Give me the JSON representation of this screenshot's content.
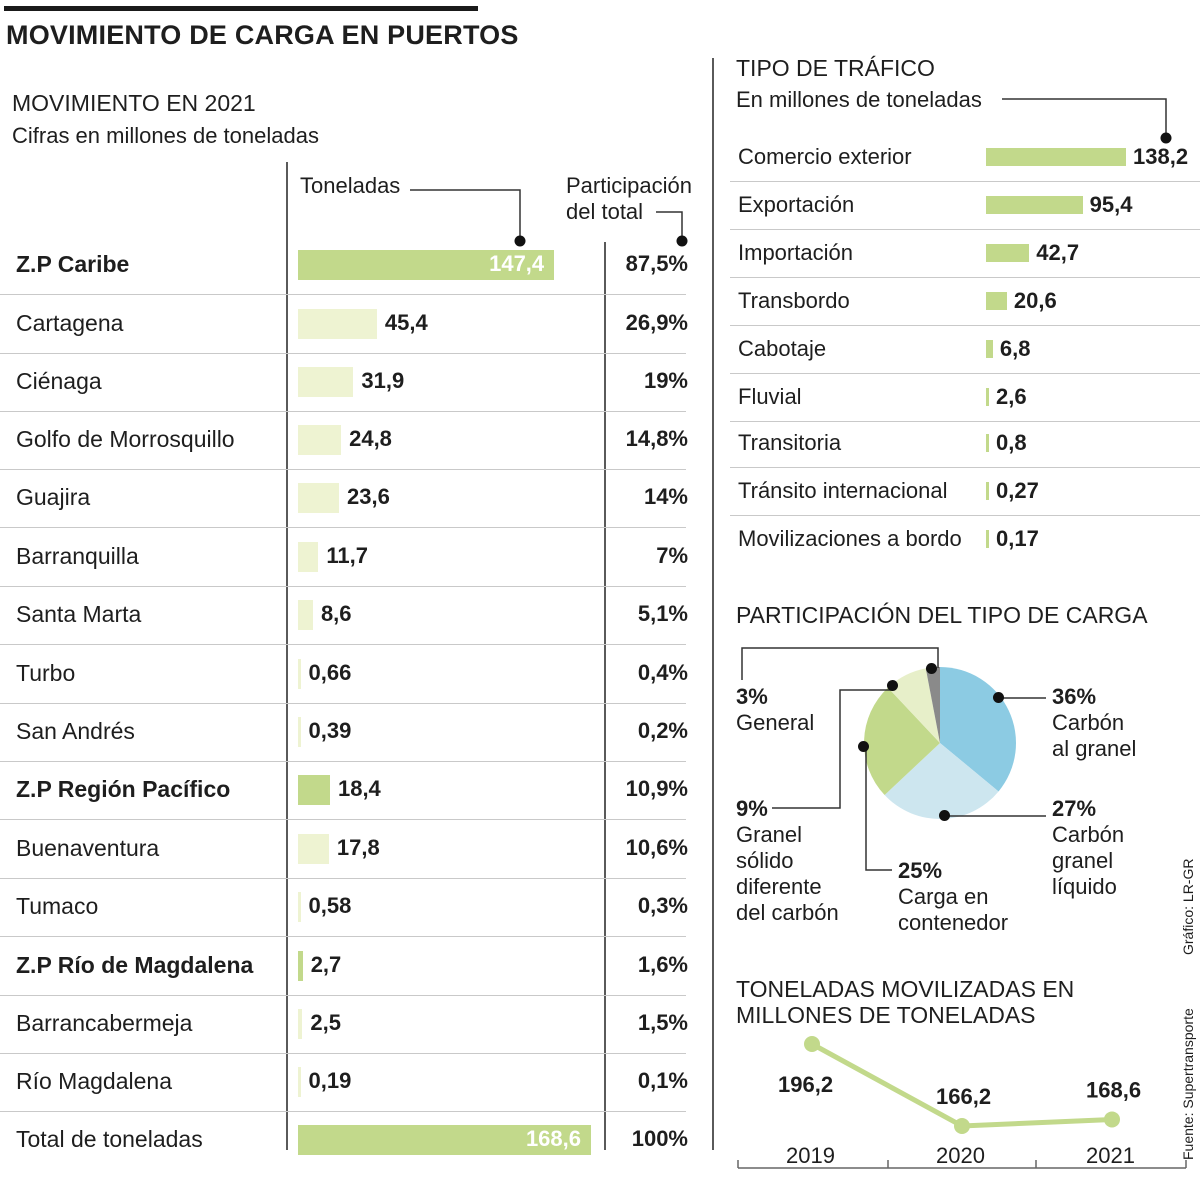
{
  "title": "MOVIMIENTO DE CARGA EN PUERTOS",
  "left": {
    "title": "MOVIMIENTO EN 2021",
    "subtitle": "Cifras en millones de toneladas",
    "col_tons": "Toneladas",
    "col_share_1": "Participación",
    "col_share_2": "del total",
    "rows": [
      {
        "label": "Z.P Caribe",
        "value": 147.4,
        "value_text": "147,4",
        "share": "87,5%",
        "bold": true
      },
      {
        "label": "Cartagena",
        "value": 45.4,
        "value_text": "45,4",
        "share": "26,9%",
        "bold": false
      },
      {
        "label": "Ciénaga",
        "value": 31.9,
        "value_text": "31,9",
        "share": "19%",
        "bold": false
      },
      {
        "label": "Golfo de Morrosquillo",
        "value": 24.8,
        "value_text": "24,8",
        "share": "14,8%",
        "bold": false
      },
      {
        "label": "Guajira",
        "value": 23.6,
        "value_text": "23,6",
        "share": "14%",
        "bold": false
      },
      {
        "label": "Barranquilla",
        "value": 11.7,
        "value_text": "11,7",
        "share": "7%",
        "bold": false
      },
      {
        "label": "Santa Marta",
        "value": 8.6,
        "value_text": "8,6",
        "share": "5,1%",
        "bold": false
      },
      {
        "label": "Turbo",
        "value": 0.66,
        "value_text": "0,66",
        "share": "0,4%",
        "bold": false
      },
      {
        "label": "San Andrés",
        "value": 0.39,
        "value_text": "0,39",
        "share": "0,2%",
        "bold": false
      },
      {
        "label": "Z.P Región Pacífico",
        "value": 18.4,
        "value_text": "18,4",
        "share": "10,9%",
        "bold": true
      },
      {
        "label": "Buenaventura",
        "value": 17.8,
        "value_text": "17,8",
        "share": "10,6%",
        "bold": false
      },
      {
        "label": "Tumaco",
        "value": 0.58,
        "value_text": "0,58",
        "share": "0,3%",
        "bold": false
      },
      {
        "label": "Z.P  Río de Magdalena",
        "value": 2.7,
        "value_text": "2,7",
        "share": "1,6%",
        "bold": true
      },
      {
        "label": "Barrancabermeja",
        "value": 2.5,
        "value_text": "2,5",
        "share": "1,5%",
        "bold": false
      },
      {
        "label": "Río Magdalena",
        "value": 0.19,
        "value_text": "0,19",
        "share": "0,1%",
        "bold": false
      }
    ],
    "total": {
      "label": "Total de toneladas",
      "value": 168.6,
      "value_text": "168,6",
      "share": "100%"
    }
  },
  "traffic": {
    "title": "TIPO DE TRÁFICO",
    "subtitle": "En millones de toneladas",
    "rows": [
      {
        "label": "Comercio exterior",
        "value": 138.2,
        "value_text": "138,2"
      },
      {
        "label": "Exportación",
        "value": 95.4,
        "value_text": "95,4"
      },
      {
        "label": "Importación",
        "value": 42.7,
        "value_text": "42,7"
      },
      {
        "label": "Transbordo",
        "value": 20.6,
        "value_text": "20,6"
      },
      {
        "label": "Cabotaje",
        "value": 6.8,
        "value_text": "6,8"
      },
      {
        "label": "Fluvial",
        "value": 2.6,
        "value_text": "2,6"
      },
      {
        "label": "Transitoria",
        "value": 0.8,
        "value_text": "0,8"
      },
      {
        "label": "Tránsito internacional",
        "value": 0.27,
        "value_text": "0,27"
      },
      {
        "label": "Movilizaciones a bordo",
        "value": 0.17,
        "value_text": "0,17"
      }
    ]
  },
  "cargo": {
    "title": "PARTICIPACIÓN DEL TIPO DE CARGA",
    "slices": [
      {
        "pct": 36,
        "pct_text": "36%",
        "lines": [
          "Carbón",
          "al granel"
        ],
        "color": "#8ccbe3"
      },
      {
        "pct": 27,
        "pct_text": "27%",
        "lines": [
          "Carbón",
          "granel",
          "líquido"
        ],
        "color": "#cde6ef"
      },
      {
        "pct": 25,
        "pct_text": "25%",
        "lines": [
          "Carga en",
          "contenedor"
        ],
        "color": "#c2d98b"
      },
      {
        "pct": 9,
        "pct_text": "9%",
        "lines": [
          "Granel",
          "sólido",
          "diferente",
          "del carbón"
        ],
        "color": "#e7efc9"
      },
      {
        "pct": 3,
        "pct_text": "3%",
        "lines": [
          "General"
        ],
        "color": "#8a8a8a"
      }
    ]
  },
  "moved": {
    "title_1": "TONELADAS MOVILIZADAS EN",
    "title_2": "MILLONES DE TONELADAS",
    "points": [
      {
        "year": "2019",
        "value": 196.2,
        "value_text": "196,2"
      },
      {
        "year": "2020",
        "value": 166.2,
        "value_text": "166,2"
      },
      {
        "year": "2021",
        "value": 168.6,
        "value_text": "168,6"
      }
    ]
  },
  "credit_graphic": "Gráfico: LR-GR",
  "credit_source": "Fuente: Supertransporte",
  "colors": {
    "bar_main": "#c2d98b",
    "bar_light": "#eef3d2",
    "line": "#c2d98b"
  },
  "chart_data": [
    {
      "type": "bar",
      "title": "MOVIMIENTO EN 2021",
      "subtitle": "Cifras en millones de toneladas",
      "categories": [
        "Z.P Caribe",
        "Cartagena",
        "Ciénaga",
        "Golfo de Morrosquillo",
        "Guajira",
        "Barranquilla",
        "Santa Marta",
        "Turbo",
        "San Andrés",
        "Z.P Región Pacífico",
        "Buenaventura",
        "Tumaco",
        "Z.P  Río de Magdalena",
        "Barrancabermeja",
        "Río Magdalena",
        "Total de toneladas"
      ],
      "series": [
        {
          "name": "Toneladas",
          "values": [
            147.4,
            45.4,
            31.9,
            24.8,
            23.6,
            11.7,
            8.6,
            0.66,
            0.39,
            18.4,
            17.8,
            0.58,
            2.7,
            2.5,
            0.19,
            168.6
          ]
        },
        {
          "name": "Participación del total (%)",
          "values": [
            87.5,
            26.9,
            19,
            14.8,
            14,
            7,
            5.1,
            0.4,
            0.2,
            10.9,
            10.6,
            0.3,
            1.6,
            1.5,
            0.1,
            100
          ]
        }
      ]
    },
    {
      "type": "bar",
      "title": "TIPO DE TRÁFICO",
      "subtitle": "En millones de toneladas",
      "categories": [
        "Comercio exterior",
        "Exportación",
        "Importación",
        "Transbordo",
        "Cabotaje",
        "Fluvial",
        "Transitoria",
        "Tránsito internacional",
        "Movilizaciones a bordo"
      ],
      "values": [
        138.2,
        95.4,
        42.7,
        20.6,
        6.8,
        2.6,
        0.8,
        0.27,
        0.17
      ]
    },
    {
      "type": "pie",
      "title": "PARTICIPACIÓN DEL TIPO DE CARGA",
      "categories": [
        "Carbón al granel",
        "Carbón granel líquido",
        "Carga en contenedor",
        "Granel sólido diferente del carbón",
        "General"
      ],
      "values": [
        36,
        27,
        25,
        9,
        3
      ]
    },
    {
      "type": "line",
      "title": "TONELADAS MOVILIZADAS EN MILLONES DE TONELADAS",
      "x": [
        "2019",
        "2020",
        "2021"
      ],
      "values": [
        196.2,
        166.2,
        168.6
      ]
    }
  ]
}
